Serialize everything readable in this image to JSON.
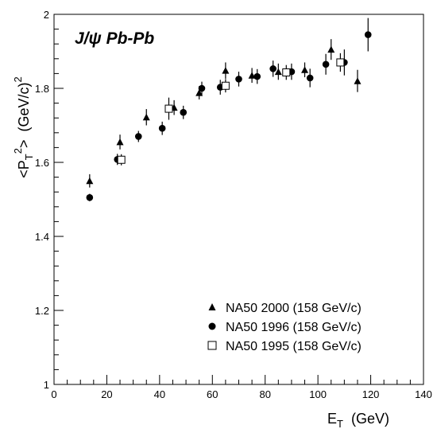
{
  "chart_data": {
    "type": "scatter",
    "annotation": "J/ψ  Pb-Pb",
    "xlabel_main": "E",
    "xlabel_sub": "T",
    "xlabel_unit": "(GeV)",
    "ylabel_pre": "<P",
    "ylabel_sub": "T",
    "ylabel_sup": "2",
    "ylabel_post": ">",
    "ylabel_unit": "(GeV/c)",
    "ylabel_unit_sup": "2",
    "xlim": [
      0,
      140
    ],
    "ylim": [
      1,
      2
    ],
    "x_ticks": [
      0,
      20,
      40,
      60,
      80,
      100,
      120,
      140
    ],
    "y_ticks": [
      1,
      1.2,
      1.4,
      1.6,
      1.8,
      2
    ],
    "grid": false,
    "legend_position": "bottom-right",
    "series": [
      {
        "name": "NA50 2000 (158 GeV/c)",
        "marker": "triangle",
        "color": "#000000",
        "points": [
          {
            "x": 13.5,
            "y": 1.55,
            "err": 0.018
          },
          {
            "x": 25,
            "y": 1.655,
            "err": 0.02
          },
          {
            "x": 35,
            "y": 1.722,
            "err": 0.022
          },
          {
            "x": 45.5,
            "y": 1.748,
            "err": 0.02
          },
          {
            "x": 55,
            "y": 1.788,
            "err": 0.018
          },
          {
            "x": 65,
            "y": 1.848,
            "err": 0.022
          },
          {
            "x": 75,
            "y": 1.835,
            "err": 0.02
          },
          {
            "x": 85,
            "y": 1.845,
            "err": 0.022
          },
          {
            "x": 95,
            "y": 1.85,
            "err": 0.02
          },
          {
            "x": 105,
            "y": 1.905,
            "err": 0.028
          },
          {
            "x": 115,
            "y": 1.82,
            "err": 0.03
          }
        ]
      },
      {
        "name": "NA50 1996 (158 GeV/c)",
        "marker": "circle",
        "color": "#000000",
        "points": [
          {
            "x": 13.5,
            "y": 1.505,
            "err": 0.01
          },
          {
            "x": 24,
            "y": 1.608,
            "err": 0.015
          },
          {
            "x": 32,
            "y": 1.67,
            "err": 0.015
          },
          {
            "x": 41,
            "y": 1.692,
            "err": 0.018
          },
          {
            "x": 49,
            "y": 1.735,
            "err": 0.018
          },
          {
            "x": 56,
            "y": 1.8,
            "err": 0.018
          },
          {
            "x": 63,
            "y": 1.803,
            "err": 0.02
          },
          {
            "x": 70,
            "y": 1.825,
            "err": 0.02
          },
          {
            "x": 77,
            "y": 1.832,
            "err": 0.02
          },
          {
            "x": 83,
            "y": 1.853,
            "err": 0.022
          },
          {
            "x": 90,
            "y": 1.845,
            "err": 0.022
          },
          {
            "x": 97,
            "y": 1.828,
            "err": 0.025
          },
          {
            "x": 103,
            "y": 1.865,
            "err": 0.028
          },
          {
            "x": 110,
            "y": 1.87,
            "err": 0.035
          },
          {
            "x": 119,
            "y": 1.945,
            "err": 0.045
          }
        ]
      },
      {
        "name": "NA50 1995 (158 GeV/c)",
        "marker": "open-square",
        "color": "#000000",
        "points": [
          {
            "x": 25.5,
            "y": 1.607,
            "err": 0.015
          },
          {
            "x": 43.5,
            "y": 1.745,
            "err": 0.03
          },
          {
            "x": 65,
            "y": 1.807,
            "err": 0.018
          },
          {
            "x": 88,
            "y": 1.843,
            "err": 0.02
          },
          {
            "x": 108.5,
            "y": 1.87,
            "err": 0.025
          }
        ]
      }
    ]
  }
}
